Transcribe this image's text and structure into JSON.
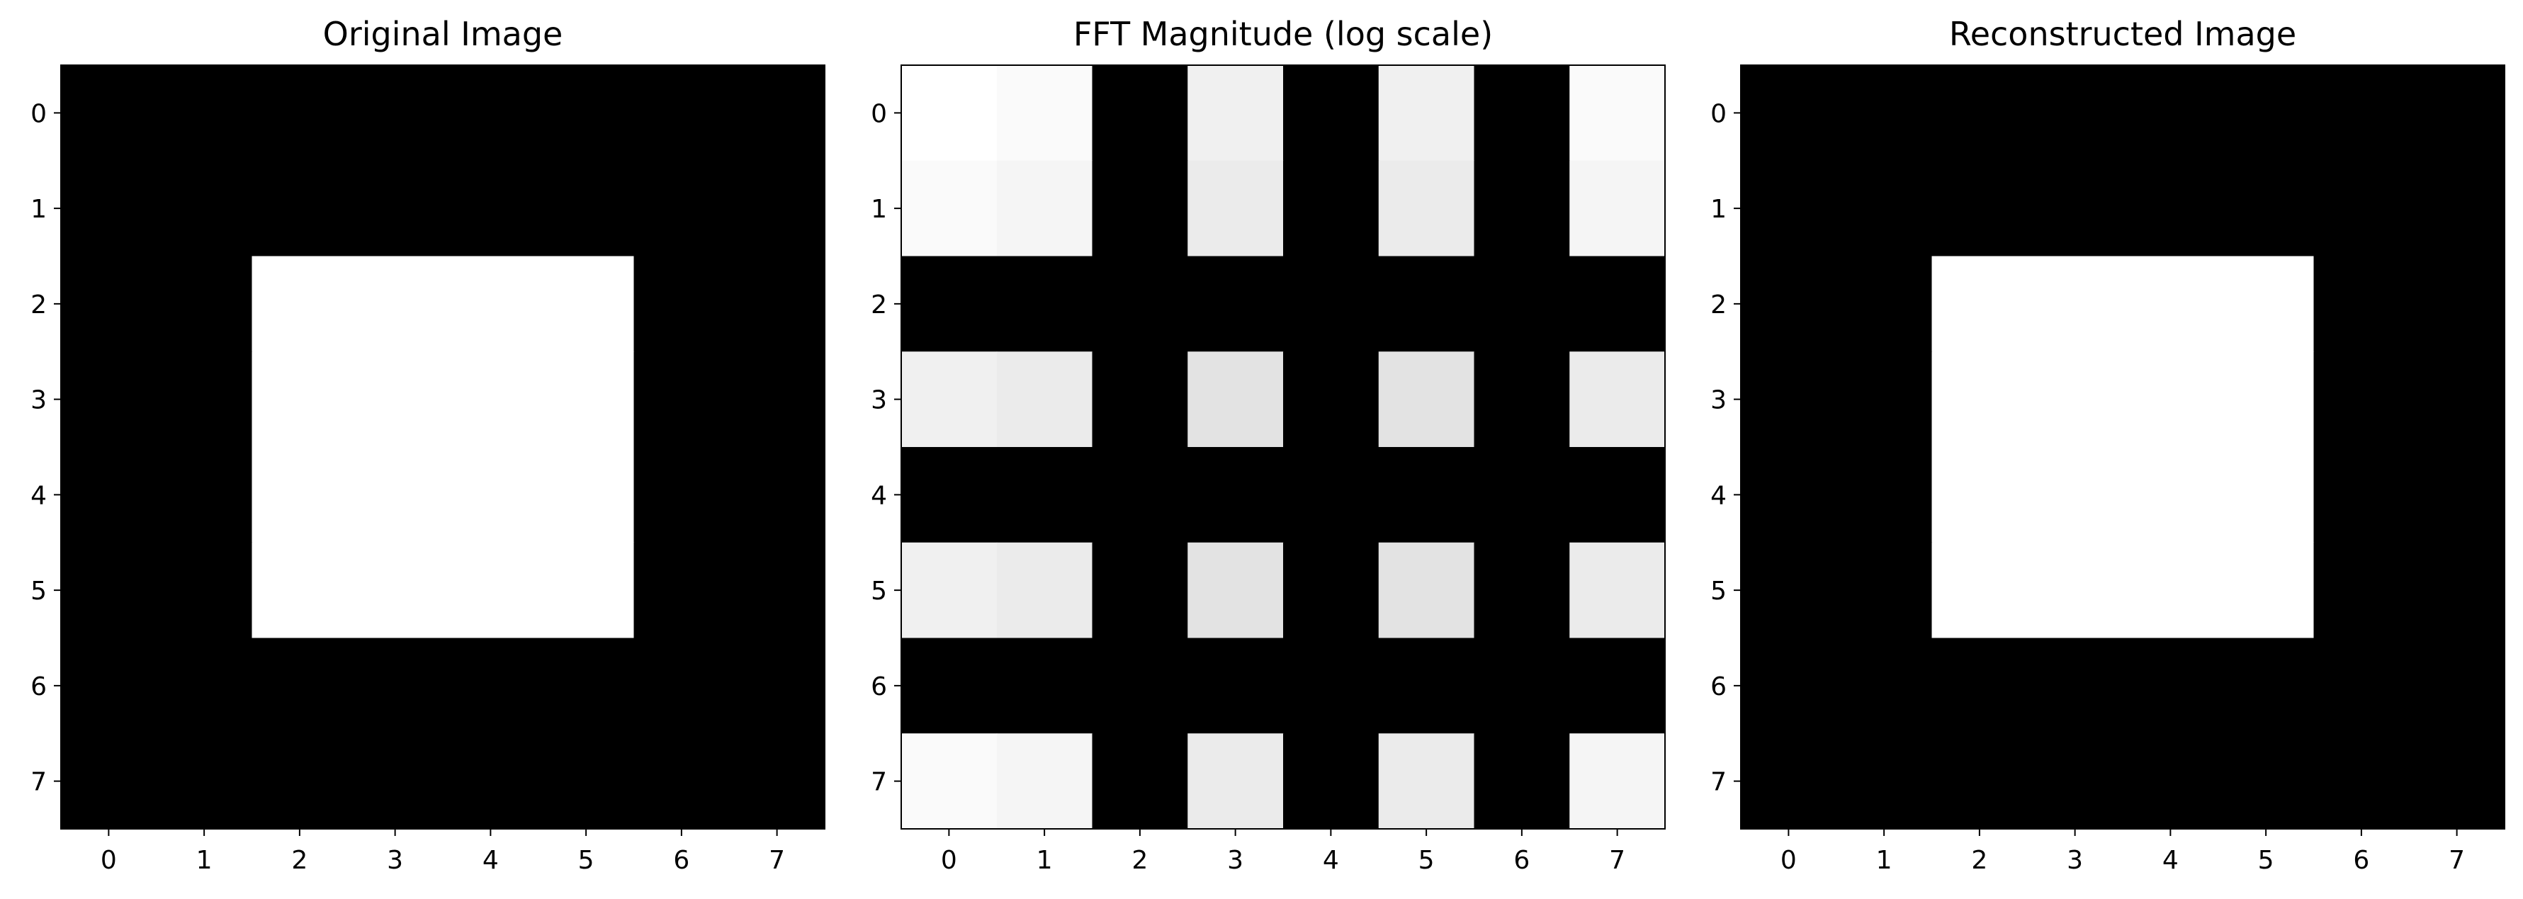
{
  "chart_data": [
    {
      "type": "heatmap",
      "title": "Original Image",
      "colormap": "gray",
      "x_ticks": [
        0,
        1,
        2,
        3,
        4,
        5,
        6,
        7
      ],
      "y_ticks": [
        0,
        1,
        2,
        3,
        4,
        5,
        6,
        7
      ],
      "xlim": [
        -0.5,
        7.5
      ],
      "ylim": [
        7.5,
        -0.5
      ],
      "grid": false,
      "values": [
        [
          0,
          0,
          0,
          0,
          0,
          0,
          0,
          0
        ],
        [
          0,
          0,
          0,
          0,
          0,
          0,
          0,
          0
        ],
        [
          0,
          0,
          1,
          1,
          1,
          1,
          0,
          0
        ],
        [
          0,
          0,
          1,
          1,
          1,
          1,
          0,
          0
        ],
        [
          0,
          0,
          1,
          1,
          1,
          1,
          0,
          0
        ],
        [
          0,
          0,
          1,
          1,
          1,
          1,
          0,
          0
        ],
        [
          0,
          0,
          0,
          0,
          0,
          0,
          0,
          0
        ],
        [
          0,
          0,
          0,
          0,
          0,
          0,
          0,
          0
        ]
      ]
    },
    {
      "type": "heatmap",
      "title": "FFT Magnitude (log scale)",
      "colormap": "gray",
      "x_ticks": [
        0,
        1,
        2,
        3,
        4,
        5,
        6,
        7
      ],
      "y_ticks": [
        0,
        1,
        2,
        3,
        4,
        5,
        6,
        7
      ],
      "xlim": [
        -0.5,
        7.5
      ],
      "ylim": [
        7.5,
        -0.5
      ],
      "grid": false,
      "values": [
        [
          1.0,
          0.98,
          0.0,
          0.94,
          0.0,
          0.94,
          0.0,
          0.98
        ],
        [
          0.98,
          0.96,
          0.0,
          0.92,
          0.0,
          0.92,
          0.0,
          0.96
        ],
        [
          0.0,
          0.0,
          0.0,
          0.0,
          0.0,
          0.0,
          0.0,
          0.0
        ],
        [
          0.94,
          0.92,
          0.0,
          0.89,
          0.0,
          0.89,
          0.0,
          0.92
        ],
        [
          0.0,
          0.0,
          0.0,
          0.0,
          0.0,
          0.0,
          0.0,
          0.0
        ],
        [
          0.94,
          0.92,
          0.0,
          0.89,
          0.0,
          0.89,
          0.0,
          0.92
        ],
        [
          0.0,
          0.0,
          0.0,
          0.0,
          0.0,
          0.0,
          0.0,
          0.0
        ],
        [
          0.98,
          0.96,
          0.0,
          0.92,
          0.0,
          0.92,
          0.0,
          0.96
        ]
      ]
    },
    {
      "type": "heatmap",
      "title": "Reconstructed Image",
      "colormap": "gray",
      "x_ticks": [
        0,
        1,
        2,
        3,
        4,
        5,
        6,
        7
      ],
      "y_ticks": [
        0,
        1,
        2,
        3,
        4,
        5,
        6,
        7
      ],
      "xlim": [
        -0.5,
        7.5
      ],
      "ylim": [
        7.5,
        -0.5
      ],
      "grid": false,
      "values": [
        [
          0,
          0,
          0,
          0,
          0,
          0,
          0,
          0
        ],
        [
          0,
          0,
          0,
          0,
          0,
          0,
          0,
          0
        ],
        [
          0,
          0,
          1,
          1,
          1,
          1,
          0,
          0
        ],
        [
          0,
          0,
          1,
          1,
          1,
          1,
          0,
          0
        ],
        [
          0,
          0,
          1,
          1,
          1,
          1,
          0,
          0
        ],
        [
          0,
          0,
          1,
          1,
          1,
          1,
          0,
          0
        ],
        [
          0,
          0,
          0,
          0,
          0,
          0,
          0,
          0
        ],
        [
          0,
          0,
          0,
          0,
          0,
          0,
          0,
          0
        ]
      ]
    }
  ]
}
